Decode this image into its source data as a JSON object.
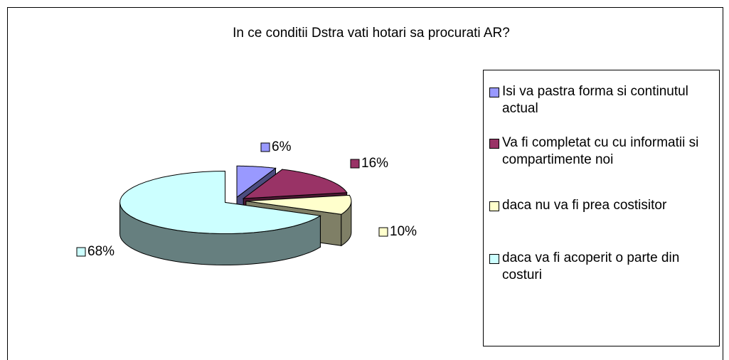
{
  "chart_data": {
    "type": "pie",
    "title": "In ce conditii Dstra vati hotari sa procurati AR?",
    "categories": [
      "Isi va pastra forma si continutul actual",
      "Va fi completat cu cu informatii si compartimente noi",
      "daca nu va fi prea costisitor",
      "daca va fi acoperit o parte din costuri"
    ],
    "values": [
      6,
      16,
      10,
      68
    ],
    "value_labels": [
      "6%",
      "16%",
      "10%",
      "68%"
    ],
    "colors": [
      "#9999ff",
      "#993366",
      "#ffffcc",
      "#ccffff"
    ],
    "legend": "right"
  }
}
